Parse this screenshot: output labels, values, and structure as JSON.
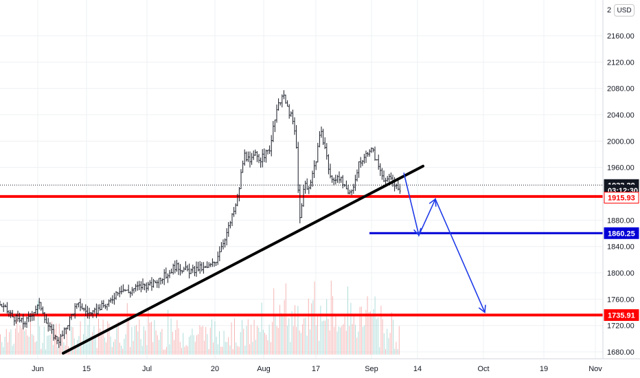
{
  "currency": "USD",
  "chart_data": {
    "type": "candlestick",
    "y_axis_labels": [
      "2160.00",
      "2120.00",
      "2080.00",
      "2040.00",
      "2000.00",
      "1960.00",
      "1880.00",
      "1840.00",
      "1800.00",
      "1760.00",
      "1720.00",
      "1680.00"
    ],
    "y_axis_top_partial": "2",
    "ylim": [
      1676,
      2200
    ],
    "x_axis_labels": [
      "Jun",
      "15",
      "Jul",
      "20",
      "Aug",
      "17",
      "Sep",
      "14",
      "Oct",
      "19",
      "Nov"
    ],
    "price_path": [
      [
        0,
        1752
      ],
      [
        10,
        1742
      ],
      [
        20,
        1732
      ],
      [
        28,
        1728
      ],
      [
        34,
        1724
      ],
      [
        40,
        1728
      ],
      [
        46,
        1738
      ],
      [
        52,
        1746
      ],
      [
        58,
        1752
      ],
      [
        62,
        1744
      ],
      [
        68,
        1724
      ],
      [
        74,
        1712
      ],
      [
        80,
        1702
      ],
      [
        86,
        1698
      ],
      [
        92,
        1706
      ],
      [
        98,
        1722
      ],
      [
        104,
        1736
      ],
      [
        110,
        1748
      ],
      [
        116,
        1752
      ],
      [
        122,
        1744
      ],
      [
        128,
        1740
      ],
      [
        134,
        1736
      ],
      [
        140,
        1742
      ],
      [
        146,
        1748
      ],
      [
        152,
        1750
      ],
      [
        158,
        1752
      ],
      [
        164,
        1762
      ],
      [
        170,
        1772
      ],
      [
        176,
        1776
      ],
      [
        182,
        1774
      ],
      [
        188,
        1770
      ],
      [
        194,
        1776
      ],
      [
        200,
        1778
      ],
      [
        206,
        1780
      ],
      [
        212,
        1782
      ],
      [
        218,
        1780
      ],
      [
        224,
        1784
      ],
      [
        230,
        1790
      ],
      [
        236,
        1794
      ],
      [
        242,
        1796
      ],
      [
        248,
        1802
      ],
      [
        254,
        1810
      ],
      [
        260,
        1808
      ],
      [
        266,
        1806
      ],
      [
        272,
        1804
      ],
      [
        278,
        1802
      ],
      [
        284,
        1804
      ],
      [
        290,
        1808
      ],
      [
        296,
        1806
      ],
      [
        302,
        1808
      ],
      [
        308,
        1812
      ],
      [
        314,
        1818
      ],
      [
        320,
        1836
      ],
      [
        326,
        1850
      ],
      [
        332,
        1866
      ],
      [
        336,
        1878
      ],
      [
        340,
        1892
      ],
      [
        344,
        1904
      ],
      [
        348,
        1926
      ],
      [
        352,
        1958
      ],
      [
        356,
        1980
      ],
      [
        360,
        1974
      ],
      [
        364,
        1966
      ],
      [
        368,
        1974
      ],
      [
        372,
        1980
      ],
      [
        376,
        1976
      ],
      [
        380,
        1972
      ],
      [
        384,
        1978
      ],
      [
        388,
        1982
      ],
      [
        392,
        1986
      ],
      [
        396,
        2006
      ],
      [
        400,
        2032
      ],
      [
        404,
        2048
      ],
      [
        408,
        2062
      ],
      [
        412,
        2070
      ],
      [
        416,
        2058
      ],
      [
        420,
        2046
      ],
      [
        424,
        2038
      ],
      [
        428,
        2022
      ],
      [
        432,
        1986
      ],
      [
        434,
        1928
      ],
      [
        436,
        1898
      ],
      [
        438,
        1872
      ],
      [
        440,
        1912
      ],
      [
        444,
        1938
      ],
      [
        448,
        1924
      ],
      [
        452,
        1940
      ],
      [
        456,
        1956
      ],
      [
        460,
        1970
      ],
      [
        464,
        2002
      ],
      [
        468,
        2010
      ],
      [
        472,
        1998
      ],
      [
        476,
        1974
      ],
      [
        480,
        1950
      ],
      [
        484,
        1938
      ],
      [
        488,
        1942
      ],
      [
        492,
        1950
      ],
      [
        496,
        1942
      ],
      [
        500,
        1932
      ],
      [
        504,
        1924
      ],
      [
        508,
        1918
      ],
      [
        512,
        1926
      ],
      [
        516,
        1938
      ],
      [
        520,
        1952
      ],
      [
        524,
        1970
      ],
      [
        528,
        1968
      ],
      [
        532,
        1978
      ],
      [
        536,
        1986
      ],
      [
        540,
        1988
      ],
      [
        544,
        1982
      ],
      [
        548,
        1970
      ],
      [
        552,
        1960
      ],
      [
        556,
        1952
      ],
      [
        560,
        1942
      ],
      [
        564,
        1938
      ],
      [
        568,
        1946
      ],
      [
        572,
        1940
      ],
      [
        576,
        1934
      ],
      [
        580,
        1922
      ],
      [
        584,
        1933
      ]
    ],
    "trendline": {
      "from": [
        92,
        1678
      ],
      "to": [
        616,
        1962
      ]
    },
    "horizontal_levels": [
      {
        "name": "resistance",
        "price": 1915.93,
        "color": "#ff0000"
      },
      {
        "name": "support-upper",
        "price": 1860.25,
        "color": "#0000d6"
      },
      {
        "name": "support-lower",
        "price": 1735.91,
        "color": "#ff0000"
      }
    ],
    "current_price_line": 1933.29,
    "projection_path": [
      [
        588,
        1952
      ],
      [
        610,
        1857
      ],
      [
        634,
        1912
      ],
      [
        706,
        1740
      ]
    ],
    "volume_bars_region": {
      "baseline_y": 516,
      "max_height": 130
    },
    "price_tags": [
      {
        "label": "1933.29",
        "price": 1933.29,
        "bg": "#131722",
        "fg": "#ffffff"
      },
      {
        "label": "03:12:30",
        "price": 1925.0,
        "bg": "#131722",
        "fg": "#ffffff"
      },
      {
        "label": "1915.93",
        "price": 1914.2,
        "bg": "#ffffff",
        "fg": "#ff0000",
        "border": "#ff0000"
      },
      {
        "label": "1860.25",
        "price": 1860.25,
        "bg": "#0000d6",
        "fg": "#ffffff"
      },
      {
        "label": "1735.91",
        "price": 1735.91,
        "bg": "#ff0000",
        "fg": "#ffffff"
      }
    ],
    "colors": {
      "candle": "#131722",
      "grid": "#eef0f3",
      "trendline": "#000000",
      "projection": "#1f3be8",
      "volume_up": "#9fd6d1",
      "volume_down": "#f4a7a7"
    }
  }
}
